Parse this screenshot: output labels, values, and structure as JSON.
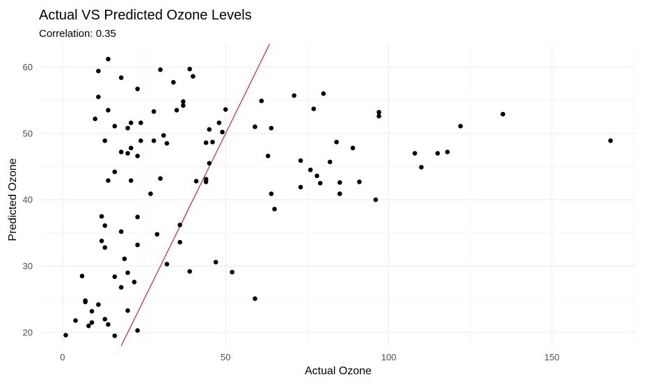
{
  "chart_data": {
    "type": "scatter",
    "title": "Actual VS Predicted Ozone Levels",
    "subtitle": "Correlation: 0.35",
    "xlabel": "Actual Ozone",
    "ylabel": "Predicted Ozone",
    "xlim": [
      -7,
      176
    ],
    "ylim": [
      18,
      63.5
    ],
    "x_ticks": [
      0,
      50,
      100,
      150
    ],
    "x_minor_ticks": [
      25,
      75,
      125,
      175
    ],
    "y_ticks": [
      20,
      30,
      40,
      50,
      60
    ],
    "y_minor_ticks": [
      25,
      35,
      45,
      55
    ],
    "grid": true,
    "point_color": "#000000",
    "reference_line": {
      "slope": 1,
      "intercept": 0,
      "color": "#cc0000"
    },
    "points": [
      [
        1,
        19.6
      ],
      [
        4,
        21.8
      ],
      [
        6,
        28.5
      ],
      [
        7,
        24.8
      ],
      [
        7,
        24.6
      ],
      [
        8,
        21.0
      ],
      [
        9,
        23.2
      ],
      [
        9,
        21.5
      ],
      [
        10,
        52.2
      ],
      [
        11,
        59.4
      ],
      [
        11,
        55.5
      ],
      [
        11,
        24.2
      ],
      [
        12,
        37.5
      ],
      [
        12,
        33.8
      ],
      [
        13,
        36.1
      ],
      [
        13,
        32.8
      ],
      [
        13,
        22.0
      ],
      [
        13,
        48.9
      ],
      [
        14,
        61.2
      ],
      [
        14,
        53.5
      ],
      [
        14,
        42.9
      ],
      [
        14,
        21.2
      ],
      [
        16,
        51.1
      ],
      [
        16,
        44.2
      ],
      [
        16,
        28.4
      ],
      [
        16,
        19.5
      ],
      [
        18,
        58.4
      ],
      [
        18,
        47.2
      ],
      [
        18,
        35.2
      ],
      [
        18,
        26.8
      ],
      [
        19,
        31.1
      ],
      [
        20,
        50.8
      ],
      [
        20,
        47.0
      ],
      [
        20,
        29.0
      ],
      [
        20,
        23.3
      ],
      [
        21,
        51.6
      ],
      [
        21,
        47.8
      ],
      [
        21,
        42.9
      ],
      [
        22,
        27.6
      ],
      [
        23,
        56.7
      ],
      [
        23,
        46.6
      ],
      [
        23,
        37.4
      ],
      [
        23,
        33.2
      ],
      [
        23,
        20.3
      ],
      [
        24,
        51.6
      ],
      [
        24,
        48.9
      ],
      [
        27,
        40.9
      ],
      [
        28,
        53.3
      ],
      [
        28,
        48.9
      ],
      [
        29,
        34.8
      ],
      [
        30,
        59.6
      ],
      [
        30,
        43.2
      ],
      [
        31,
        49.7
      ],
      [
        32,
        48.5
      ],
      [
        32,
        30.3
      ],
      [
        34,
        57.7
      ],
      [
        35,
        53.5
      ],
      [
        36,
        36.2
      ],
      [
        36,
        33.6
      ],
      [
        37,
        54.8
      ],
      [
        37,
        54.2
      ],
      [
        39,
        59.7
      ],
      [
        39,
        29.2
      ],
      [
        40,
        58.6
      ],
      [
        41,
        42.8
      ],
      [
        44,
        48.6
      ],
      [
        44,
        43.1
      ],
      [
        44,
        42.7
      ],
      [
        45,
        50.6
      ],
      [
        45,
        45.5
      ],
      [
        46,
        48.7
      ],
      [
        47,
        30.6
      ],
      [
        48,
        51.6
      ],
      [
        49,
        50.2
      ],
      [
        50,
        53.6
      ],
      [
        52,
        29.1
      ],
      [
        59,
        51.0
      ],
      [
        59,
        25.1
      ],
      [
        61,
        54.9
      ],
      [
        63,
        46.6
      ],
      [
        64,
        50.8
      ],
      [
        64,
        40.9
      ],
      [
        65,
        38.6
      ],
      [
        71,
        55.7
      ],
      [
        73,
        45.9
      ],
      [
        73,
        41.9
      ],
      [
        77,
        53.7
      ],
      [
        76,
        44.5
      ],
      [
        78,
        43.6
      ],
      [
        79,
        42.5
      ],
      [
        80,
        56.0
      ],
      [
        82,
        45.7
      ],
      [
        84,
        48.7
      ],
      [
        85,
        42.6
      ],
      [
        85,
        40.9
      ],
      [
        89,
        47.8
      ],
      [
        91,
        42.7
      ],
      [
        96,
        40.0
      ],
      [
        97,
        53.2
      ],
      [
        97,
        52.6
      ],
      [
        108,
        47.0
      ],
      [
        110,
        44.9
      ],
      [
        115,
        47.0
      ],
      [
        118,
        47.2
      ],
      [
        122,
        51.1
      ],
      [
        135,
        52.9
      ],
      [
        168,
        48.9
      ]
    ]
  }
}
